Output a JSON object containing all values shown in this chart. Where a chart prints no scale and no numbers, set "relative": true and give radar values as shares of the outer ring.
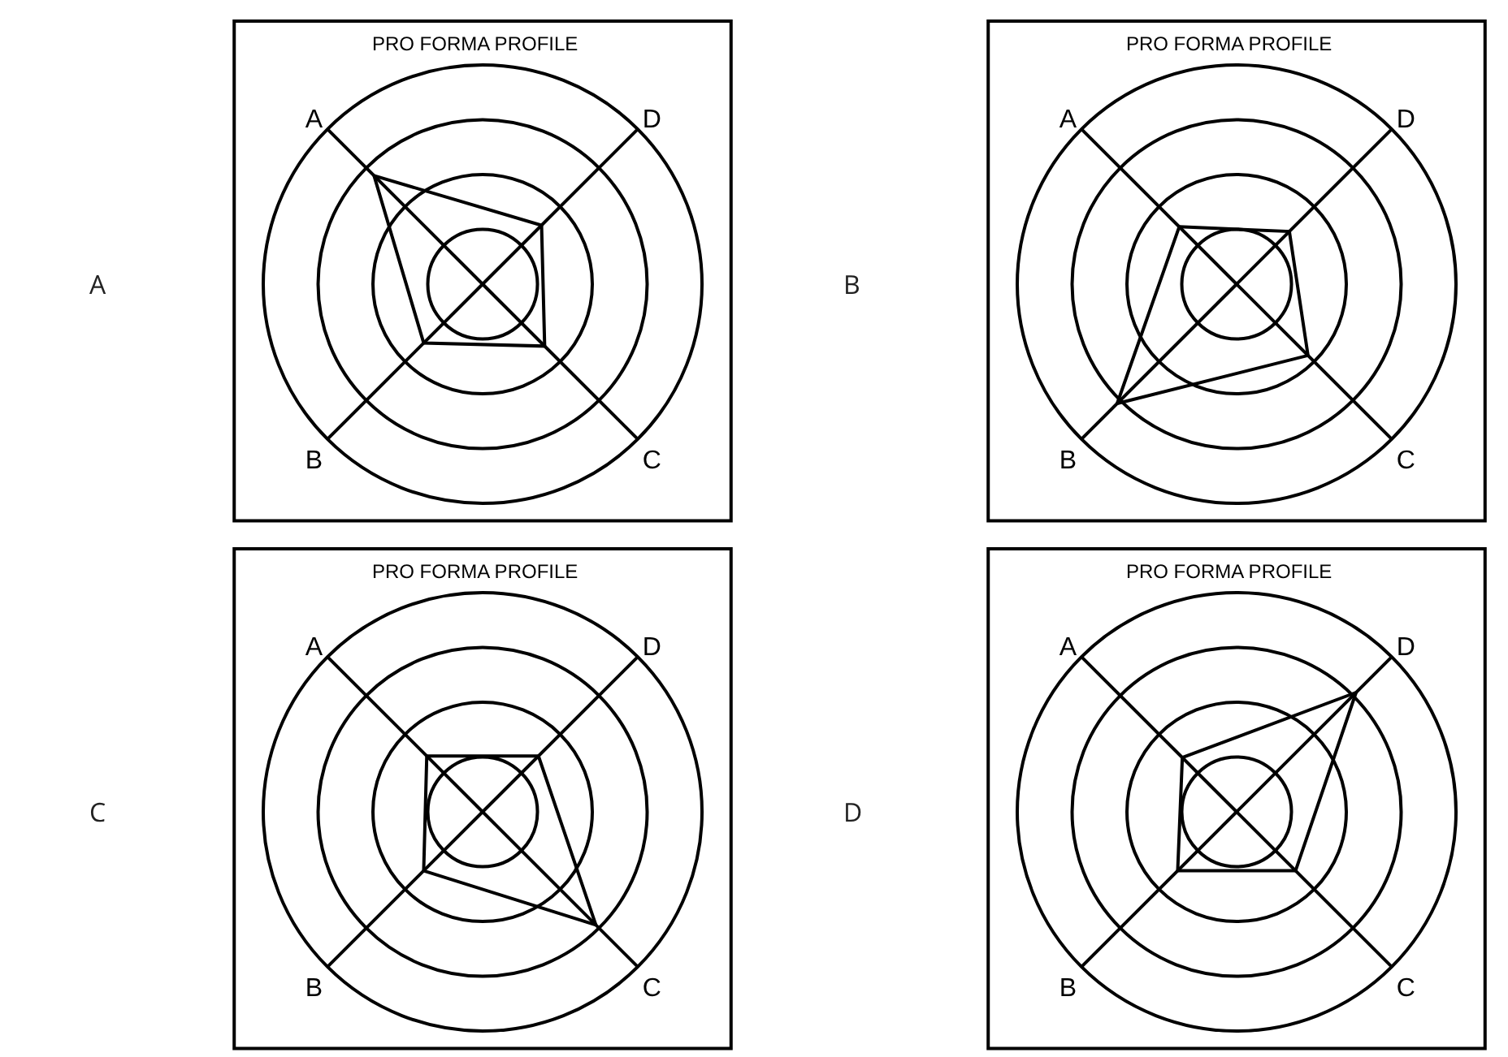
{
  "chart_data": [
    {
      "type": "radar",
      "title": "PRO FORMA PROFILE",
      "annotations": [
        "A"
      ],
      "categories": [
        "A",
        "D",
        "C",
        "B"
      ],
      "relative": true,
      "grid": true,
      "series": [
        {
          "color": "#000000",
          "values": [
            0.7,
            0.38,
            0.4,
            0.38
          ]
        }
      ]
    },
    {
      "type": "radar",
      "title": "PRO FORMA PROFILE",
      "annotations": [
        "B"
      ],
      "categories": [
        "A",
        "D",
        "C",
        "B"
      ],
      "relative": true,
      "grid": true,
      "series": [
        {
          "color": "#000000",
          "values": [
            0.37,
            0.34,
            0.46,
            0.77
          ]
        }
      ]
    },
    {
      "type": "radar",
      "title": "PRO FORMA PROFILE",
      "annotations": [
        "C"
      ],
      "categories": [
        "A",
        "D",
        "C",
        "B"
      ],
      "relative": true,
      "grid": true,
      "series": [
        {
          "color": "#000000",
          "values": [
            0.36,
            0.36,
            0.73,
            0.38
          ]
        }
      ]
    },
    {
      "type": "radar",
      "title": "PRO FORMA PROFILE",
      "annotations": [
        "D"
      ],
      "categories": [
        "A",
        "D",
        "C",
        "B"
      ],
      "relative": true,
      "grid": true,
      "series": [
        {
          "color": "#000000",
          "values": [
            0.35,
            0.77,
            0.38,
            0.38
          ]
        }
      ]
    }
  ]
}
